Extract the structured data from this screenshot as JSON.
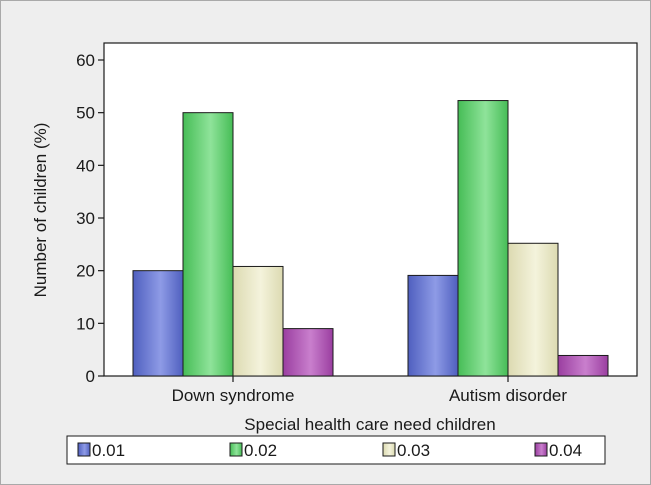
{
  "colors": {
    "series": [
      "#4f5fbf",
      "#46bd56",
      "#dcdab1",
      "#9a3ea0"
    ],
    "series_light": [
      "#8e9be6",
      "#8fe39a",
      "#f4f3dc",
      "#c97fcd"
    ],
    "plot_bg": "#ffffff",
    "panel_bg": "#eeeeee",
    "axis": "#1a1a1a"
  },
  "chart_data": {
    "type": "bar",
    "title": "",
    "xlabel": "Special health care need children",
    "ylabel": "Number of children (%)",
    "categories": [
      "Down syndrome",
      "Autism disorder"
    ],
    "series": [
      {
        "name": "0.01",
        "values": [
          20.0,
          19.1
        ]
      },
      {
        "name": "0.02",
        "values": [
          50.0,
          52.3
        ]
      },
      {
        "name": "0.03",
        "values": [
          20.8,
          25.2
        ]
      },
      {
        "name": "0.04",
        "values": [
          9.0,
          3.9
        ]
      }
    ],
    "ylim": [
      0,
      60
    ],
    "yticks": [
      "0",
      "10",
      "20",
      "30",
      "40",
      "50",
      "60"
    ],
    "grid": false,
    "legend_position": "bottom"
  }
}
